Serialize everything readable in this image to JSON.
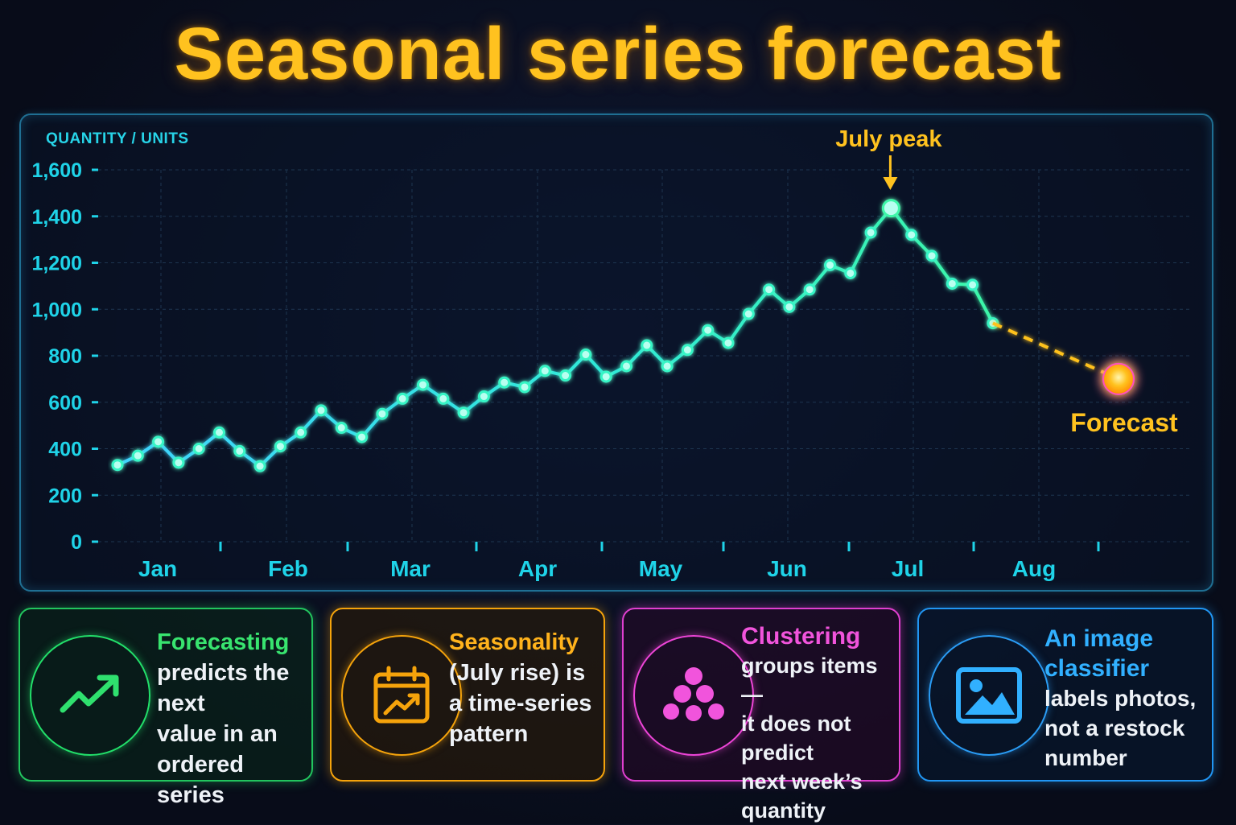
{
  "title": "Seasonal series forecast",
  "chart_data": {
    "type": "line",
    "ylabel": "QUANTITY / UNITS",
    "ylim": [
      0,
      1600
    ],
    "yticks": [
      "0",
      "200",
      "400",
      "600",
      "800",
      "1,000",
      "1,200",
      "1,400",
      "1,600"
    ],
    "month_labels": [
      "Jan",
      "Feb",
      "Mar",
      "Apr",
      "May",
      "Jun",
      "Jul",
      "Aug"
    ],
    "grid": true,
    "series": [
      {
        "values": [
          330,
          370,
          430,
          340,
          400,
          470,
          390,
          325,
          410,
          470,
          565,
          490,
          450,
          550,
          615,
          675,
          615,
          555,
          625,
          685,
          665,
          735,
          715,
          805,
          710,
          755,
          845,
          755,
          825,
          910,
          855,
          980,
          1085,
          1010,
          1085,
          1190,
          1155,
          1330,
          1435,
          1320,
          1230,
          1110,
          1105,
          940
        ]
      }
    ],
    "forecast": {
      "from": 940,
      "value": 700
    },
    "annotations": [
      {
        "text": "July peak",
        "value": 1435
      },
      {
        "text": "Forecast",
        "value": 700
      }
    ]
  },
  "cards": [
    {
      "head": "Forecasting",
      "lines": [
        "predicts the next",
        "value in an",
        "ordered series"
      ]
    },
    {
      "head": "Seasonality",
      "lines": [
        "(July rise) is",
        "a time-series",
        "pattern"
      ]
    },
    {
      "head": "Clustering",
      "lines": [
        "groups items —",
        "it does not predict",
        "next week’s",
        "quantity"
      ]
    },
    {
      "head_lines": [
        "An image",
        "classifier"
      ],
      "lines": [
        "labels photos,",
        "not a restock",
        "number"
      ]
    }
  ],
  "colors": {
    "line": "#34f5c5",
    "axis": "#1fd3e8",
    "forecast": "#ffc21f",
    "title": "#ffc21f"
  },
  "icons": [
    "trend-up-icon",
    "calendar-chart-icon",
    "cluster-dots-icon",
    "image-icon"
  ]
}
